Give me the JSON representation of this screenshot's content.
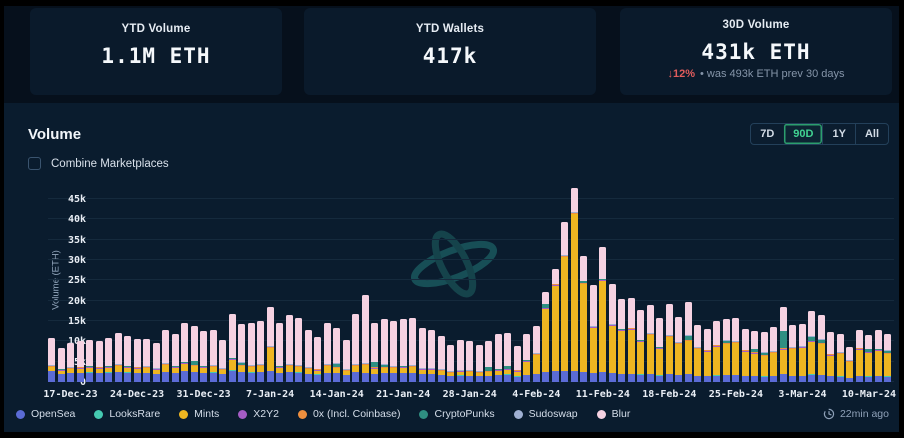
{
  "stats_cards": [
    {
      "title": "YTD Volume",
      "value": "1.1M ETH"
    },
    {
      "title": "YTD Wallets",
      "value": "417k"
    },
    {
      "title": "30D Volume",
      "value": "431k ETH",
      "delta": "↓12%",
      "delta_note": "• was 493k ETH prev 30 days"
    }
  ],
  "volume_section": {
    "title": "Volume",
    "combine_checkbox_label": "Combine Marketplaces",
    "range_buttons": [
      {
        "label": "7D",
        "selected": false
      },
      {
        "label": "90D",
        "selected": true
      },
      {
        "label": "1Y",
        "selected": false
      },
      {
        "label": "All",
        "selected": false
      }
    ],
    "updated_label": "22min ago"
  },
  "colors": {
    "page_bg": "#0a1c2e",
    "stats_band_bg": "#06101c",
    "card_bg": "#0a1a2b",
    "selected_range_green": "#41d392",
    "delta_red": "#e05c5c",
    "gridline": "#152a3d",
    "watermark_teal": "#19545b"
  },
  "chart_data": {
    "type": "bar",
    "subtype": "stacked-daily-volume",
    "title": "Volume",
    "ylabel": "Volume (ETH)",
    "ylim": [
      0,
      47.7
    ],
    "grid": true,
    "legend_position": "bottom",
    "y_ticks": [
      {
        "label": "0",
        "value": 0
      },
      {
        "label": "5k",
        "value": 5
      },
      {
        "label": "10k",
        "value": 10
      },
      {
        "label": "15k",
        "value": 15
      },
      {
        "label": "20k",
        "value": 20
      },
      {
        "label": "25k",
        "value": 25
      },
      {
        "label": "30k",
        "value": 30
      },
      {
        "label": "35k",
        "value": 35
      },
      {
        "label": "40k",
        "value": 40
      },
      {
        "label": "45k",
        "value": 45
      }
    ],
    "n_bars": 89,
    "tick_labels": [
      "17-Dec-23",
      "24-Dec-23",
      "31-Dec-23",
      "7-Jan-24",
      "14-Jan-24",
      "21-Jan-24",
      "28-Jan-24",
      "4-Feb-24",
      "11-Feb-24",
      "18-Feb-24",
      "25-Feb-24",
      "3-Mar-24",
      "10-Mar-24"
    ],
    "tick_indices": [
      2,
      9,
      16,
      23,
      30,
      37,
      44,
      51,
      58,
      65,
      72,
      79,
      86
    ],
    "unit": "k ETH",
    "totals": [
      10.8,
      8.3,
      9.6,
      10.0,
      10.4,
      10.2,
      10.8,
      12.1,
      11.3,
      10.7,
      10.7,
      9.6,
      12.8,
      11.7,
      14.6,
      13.8,
      12.5,
      12.9,
      10.4,
      16.7,
      14.2,
      14.6,
      15.0,
      18.5,
      14.6,
      16.4,
      15.8,
      12.9,
      11.0,
      14.6,
      13.2,
      10.4,
      16.7,
      21.3,
      14.6,
      15.4,
      15.0,
      15.4,
      15.8,
      13.3,
      12.9,
      11.3,
      9.2,
      10.4,
      10.0,
      9.2,
      10.0,
      11.7,
      12.1,
      8.8,
      11.9,
      13.8,
      22.1,
      27.7,
      39.3,
      47.7,
      31.0,
      23.8,
      33.2,
      24.2,
      20.5,
      20.7,
      17.6,
      18.9,
      15.7,
      19.3,
      16.0,
      19.7,
      13.9,
      13.1,
      14.9,
      15.6,
      15.7,
      13.1,
      12.5,
      12.3,
      13.5,
      18.4,
      14.1,
      14.3,
      17.4,
      16.4,
      12.3,
      11.9,
      8.6,
      12.7,
      11.5,
      12.9,
      11.8
    ],
    "series": [
      {
        "name": "OpenSea",
        "color": "#5b6bd5",
        "values": [
          2.6,
          1.9,
          2.1,
          2.2,
          2.3,
          2.2,
          2.3,
          2.5,
          2.3,
          2.2,
          2.2,
          2.0,
          2.4,
          2.2,
          2.6,
          2.4,
          2.2,
          2.3,
          1.9,
          2.8,
          2.4,
          2.3,
          2.4,
          2.6,
          2.2,
          2.4,
          2.3,
          2.0,
          1.8,
          2.2,
          2.1,
          1.7,
          2.4,
          2.2,
          2.0,
          2.1,
          2.1,
          2.2,
          2.2,
          1.9,
          1.9,
          1.7,
          1.4,
          1.6,
          1.5,
          1.4,
          1.5,
          1.7,
          1.8,
          1.3,
          1.7,
          1.9,
          2.4,
          2.6,
          2.6,
          2.6,
          2.4,
          2.2,
          2.5,
          2.2,
          2.0,
          2.0,
          1.8,
          1.9,
          1.6,
          1.9,
          1.7,
          2.0,
          1.5,
          1.4,
          1.6,
          1.7,
          1.7,
          1.4,
          1.4,
          1.3,
          1.5,
          1.9,
          1.5,
          1.5,
          1.8,
          1.7,
          1.4,
          1.3,
          1.0,
          1.4,
          1.3,
          1.4,
          1.3
        ]
      },
      {
        "name": "LooksRare",
        "color": "#45c9b1",
        "const": 0.08
      },
      {
        "name": "Mints",
        "color": "#eeb621",
        "values": [
          1.0,
          0.8,
          0.9,
          1.0,
          1.1,
          1.0,
          1.1,
          1.3,
          1.1,
          1.0,
          1.1,
          0.9,
          1.6,
          1.2,
          1.8,
          1.4,
          1.2,
          1.3,
          0.9,
          2.6,
          1.4,
          1.3,
          1.4,
          5.6,
          1.2,
          1.4,
          1.3,
          1.0,
          0.9,
          1.6,
          1.2,
          0.9,
          1.4,
          1.8,
          1.2,
          1.2,
          1.2,
          1.2,
          1.3,
          1.0,
          1.0,
          0.9,
          0.7,
          0.8,
          0.8,
          0.7,
          0.8,
          1.0,
          1.1,
          1.2,
          3.2,
          4.6,
          15.5,
          21.0,
          28.0,
          38.6,
          21.5,
          11.0,
          22.3,
          11.5,
          10.5,
          10.8,
          8.0,
          9.5,
          6.5,
          9.0,
          7.5,
          8.0,
          6.5,
          6.0,
          7.0,
          7.5,
          7.8,
          6.0,
          5.5,
          5.0,
          5.5,
          6.0,
          6.5,
          6.8,
          8.0,
          7.5,
          5.0,
          5.5,
          3.8,
          6.5,
          5.8,
          6.2,
          5.5
        ]
      },
      {
        "name": "X2Y2",
        "color": "#a55cc5",
        "const": 0.12
      },
      {
        "name": "0x (Incl. Coinbase)",
        "color": "#ee8f3e",
        "const": 0.18
      },
      {
        "name": "CryptoPunks",
        "color": "#2f8f82",
        "const": 0.05,
        "overrides": {
          "15": 0.9,
          "20": 0.5,
          "30": 0.8,
          "34": 1.3,
          "35": 0.6,
          "46": 0.9,
          "48": 0.6,
          "52": 0.8,
          "56": 0.5,
          "67": 1.0,
          "71": 0.6,
          "74": 0.8,
          "75": 0.5,
          "77": 4.2,
          "80": 1.0,
          "81": 0.8,
          "86": 0.6,
          "88": 0.5
        }
      },
      {
        "name": "Sudoswap",
        "color": "#9fb0d2",
        "const": 0.15
      },
      {
        "name": "Blur",
        "color": "#f6d2e2",
        "remainder": true
      }
    ]
  }
}
